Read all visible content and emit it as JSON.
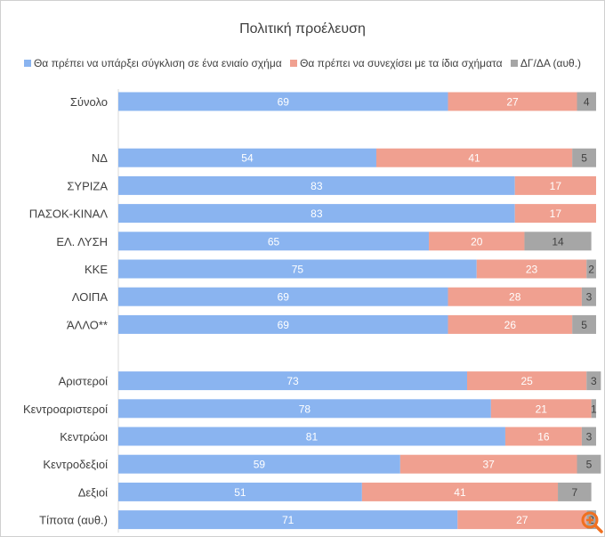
{
  "chart_data": {
    "type": "bar",
    "orientation": "horizontal",
    "stacked": true,
    "title": "Πολιτική προέλευση",
    "categories": [
      "Σύνολο",
      "ΝΔ",
      "ΣΥΡΙΖΑ",
      "ΠΑΣΟΚ-ΚΙΝΑΛ",
      "ΕΛ. ΛΥΣΗ",
      "ΚΚΕ",
      "ΛΟΙΠΑ",
      "ΆΛΛΟ**",
      "Αριστεροί",
      "Κεντροαριστεροί",
      "Κεντρώοι",
      "Κεντροδεξιοί",
      "Δεξιοί",
      "Τίποτα (αυθ.)"
    ],
    "groups": [
      [
        0
      ],
      [
        1,
        2,
        3,
        4,
        5,
        6,
        7
      ],
      [
        8,
        9,
        10,
        11,
        12,
        13
      ]
    ],
    "series": [
      {
        "name": "Θα πρέπει να υπάρξει σύγκλιση σε ένα ενιαίο σχήμα",
        "color": "#8ab4f0",
        "values": [
          69,
          54,
          83,
          83,
          65,
          75,
          69,
          69,
          73,
          78,
          81,
          59,
          51,
          71
        ]
      },
      {
        "name": "Θα πρέπει να συνεχίσει με τα ίδια σχήματα",
        "color": "#f0a090",
        "values": [
          27,
          41,
          17,
          17,
          20,
          23,
          28,
          26,
          25,
          21,
          16,
          37,
          41,
          27
        ]
      },
      {
        "name": "ΔΓ/ΔΑ (αυθ.)",
        "color": "#a6a6a6",
        "values": [
          4,
          5,
          null,
          null,
          14,
          2,
          3,
          5,
          3,
          1,
          3,
          5,
          7,
          2
        ]
      }
    ],
    "xlim": [
      0,
      100
    ],
    "legend_position": "top",
    "grid": false
  },
  "overlay_icon": "zoom-in-icon"
}
